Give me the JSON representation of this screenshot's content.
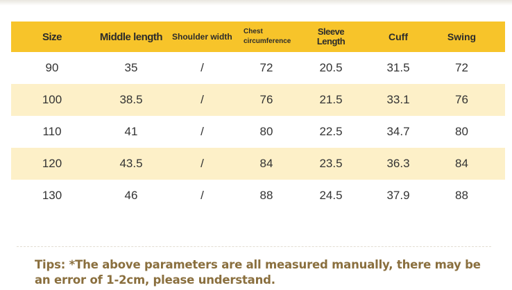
{
  "headers": {
    "size": "Size",
    "middle_length": "Middle length",
    "shoulder_width": "Shoulder width",
    "chest": "Chest circumference",
    "sleeve_line1": "Sleeve",
    "sleeve_line2": "Length",
    "cuff": "Cuff",
    "swing": "Swing"
  },
  "rows": [
    [
      "90",
      "35",
      "/",
      "72",
      "20.5",
      "31.5",
      "72"
    ],
    [
      "100",
      "38.5",
      "/",
      "76",
      "21.5",
      "33.1",
      "76"
    ],
    [
      "110",
      "41",
      "/",
      "80",
      "22.5",
      "34.7",
      "80"
    ],
    [
      "120",
      "43.5",
      "/",
      "84",
      "23.5",
      "36.3",
      "84"
    ],
    [
      "130",
      "46",
      "/",
      "88",
      "24.5",
      "37.9",
      "88"
    ]
  ],
  "tips": "Tips: *The above parameters are all measured manually, there may be an error of 1-2cm, please understand.",
  "colors": {
    "header_bg": "#f7c42a",
    "alt_row_bg": "#fdf0c8",
    "tips_text": "#8a6f3e"
  }
}
